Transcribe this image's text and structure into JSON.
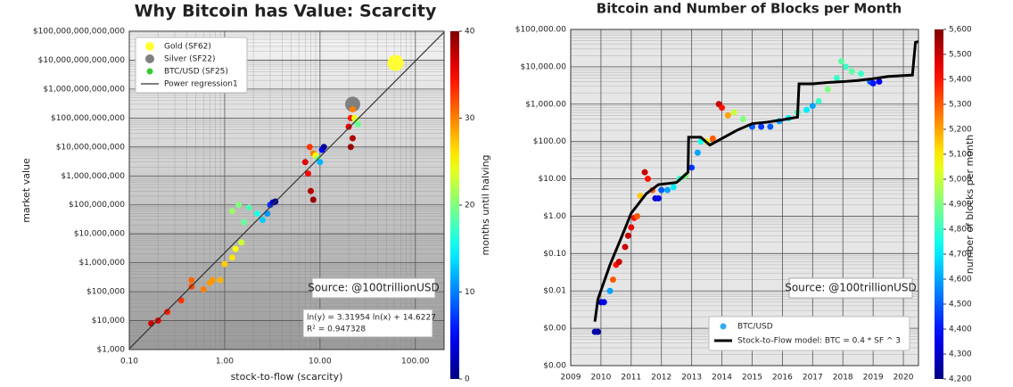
{
  "chart_data": [
    {
      "type": "scatter",
      "title": "Why Bitcoin has Value: Scarcity",
      "xlabel": "stock-to-flow (scarcity)",
      "ylabel": "market value",
      "colorbar_label": "months until halving",
      "xscale": "log",
      "yscale": "log",
      "colormap": "jet",
      "grid": true,
      "legend": "upper left",
      "xlim": [
        0.1,
        200
      ],
      "ylim": [
        1000,
        100000000000000
      ],
      "xticks": [
        {
          "value": 0.1,
          "label": "0.10"
        },
        {
          "value": 1,
          "label": "1.00"
        },
        {
          "value": 10,
          "label": "10.00"
        },
        {
          "value": 100,
          "label": "100.00"
        }
      ],
      "yticks": [
        {
          "value": 1000,
          "label": "$1,000"
        },
        {
          "value": 10000,
          "label": "$10,000"
        },
        {
          "value": 100000,
          "label": "$100,000"
        },
        {
          "value": 1000000,
          "label": "$1,000,000"
        },
        {
          "value": 10000000,
          "label": "$10,000,000"
        },
        {
          "value": 100000000,
          "label": "$100,000,000"
        },
        {
          "value": 1000000000,
          "label": "$1,000,000,000"
        },
        {
          "value": 10000000000,
          "label": "$10,000,000,000"
        },
        {
          "value": 100000000000,
          "label": "$100,000,000,000"
        },
        {
          "value": 1000000000000,
          "label": "$1,000,000,000,000"
        },
        {
          "value": 10000000000000,
          "label": "$10,000,000,000,000"
        },
        {
          "value": 100000000000000,
          "label": "$100,000,000,000,000"
        }
      ],
      "clim": [
        0,
        40
      ],
      "cticks": [
        0,
        10,
        20,
        30,
        40
      ],
      "annotations": [
        "Source: @100trillionUSD",
        "ln(y) = 3.31954 ln(x) + 14.6227",
        "R² = 0.947328"
      ],
      "series": [
        {
          "name": "Gold (SF62)",
          "kind": "scatter",
          "color": "#ffff33",
          "x": [
            62
          ],
          "y": [
            8000000000000
          ]
        },
        {
          "name": "Silver (SF22)",
          "kind": "scatter",
          "color": "#808080",
          "x": [
            22
          ],
          "y": [
            300000000000
          ]
        },
        {
          "name": "BTC/USD (SF25)",
          "kind": "scatter",
          "color": "#33cc33",
          "x": [
            0.17,
            0.2,
            0.25,
            0.35,
            0.45,
            0.45,
            0.6,
            0.7,
            0.75,
            0.9,
            1.0,
            1.2,
            1.3,
            1.5,
            1.2,
            1.4,
            1.6,
            1.8,
            2.2,
            2.5,
            2.8,
            3.0,
            3.2,
            3.4,
            7,
            7.5,
            8,
            8.5,
            7.8,
            8.5,
            9,
            9.5,
            10,
            10.5,
            11,
            21,
            22,
            20,
            21,
            22,
            23,
            24,
            25
          ],
          "y": [
            8000,
            10000,
            20000,
            50000,
            150000,
            250000,
            120000,
            200000,
            250000,
            250000,
            900000,
            1500000,
            3000000,
            5000000,
            60000000,
            100000000,
            25000000,
            80000000,
            50000000,
            30000000,
            50000000,
            100000000,
            120000000,
            130000000,
            3000000000,
            1200000000,
            300000000,
            150000000,
            10000000000,
            6000000000,
            5000000000,
            4000000000,
            3000000000,
            8000000000,
            10000000000,
            10000000000,
            20000000000,
            50000000000,
            100000000000,
            200000000000,
            100000000000,
            80000000000,
            60000000000
          ],
          "color_values": [
            37,
            36,
            34,
            33,
            32,
            31,
            30,
            29,
            29,
            28,
            27,
            26,
            25,
            23,
            21,
            20,
            19,
            18,
            16,
            13,
            11,
            7,
            3,
            1,
            36,
            35,
            38,
            39,
            33,
            30,
            25,
            20,
            12,
            5,
            1,
            39,
            38,
            36,
            34,
            30,
            25,
            22,
            19
          ]
        },
        {
          "name": "Power regression1",
          "kind": "line",
          "color": "#333333",
          "x": [
            0.1,
            200
          ],
          "y": [
            1071,
            93000000000000
          ]
        }
      ]
    },
    {
      "type": "scatter",
      "title": "Bitcoin and Number of Blocks per Month",
      "colorbar_label": "number of blocks per month",
      "xscale": "linear",
      "yscale": "log",
      "colormap": "jet",
      "grid": true,
      "legend": "lower right",
      "xlim": [
        2009,
        2020.5
      ],
      "ylim": [
        0.0001,
        100000
      ],
      "xticks": [
        2009,
        2010,
        2011,
        2012,
        2013,
        2014,
        2015,
        2016,
        2017,
        2018,
        2019,
        2020
      ],
      "yticks": [
        {
          "value": 0.0001,
          "label": "$0.00"
        },
        {
          "value": 0.001,
          "label": "$0.00"
        },
        {
          "value": 0.01,
          "label": "$0.01"
        },
        {
          "value": 0.1,
          "label": "$0.10"
        },
        {
          "value": 1,
          "label": "$1.00"
        },
        {
          "value": 10,
          "label": "$10.00"
        },
        {
          "value": 100,
          "label": "$100.00"
        },
        {
          "value": 1000,
          "label": "$1,000.00"
        },
        {
          "value": 10000,
          "label": "$10,000.00"
        },
        {
          "value": 100000,
          "label": "$100,000.00"
        }
      ],
      "clim": [
        4200,
        5600
      ],
      "cticks": [
        {
          "value": 4200,
          "label": "4,200"
        },
        {
          "value": 4300,
          "label": "4,300"
        },
        {
          "value": 4400,
          "label": "4,400"
        },
        {
          "value": 4500,
          "label": "4,500"
        },
        {
          "value": 4600,
          "label": "4,600"
        },
        {
          "value": 4700,
          "label": "4,700"
        },
        {
          "value": 4800,
          "label": "4,800"
        },
        {
          "value": 4900,
          "label": "4,900"
        },
        {
          "value": 5000,
          "label": "5,000"
        },
        {
          "value": 5100,
          "label": "5,100"
        },
        {
          "value": 5200,
          "label": "5,200"
        },
        {
          "value": 5300,
          "label": "5,300"
        },
        {
          "value": 5400,
          "label": "5,400"
        },
        {
          "value": 5500,
          "label": "5,500"
        },
        {
          "value": 5600,
          "label": "5,600"
        }
      ],
      "annotations": [
        "Source: @100trillionUSD"
      ],
      "series": [
        {
          "name": "BTC/USD",
          "kind": "scatter",
          "color": "#33aaee",
          "x": [
            2009.8,
            2009.9,
            2010.0,
            2010.1,
            2010.3,
            2010.4,
            2010.5,
            2010.6,
            2010.8,
            2010.9,
            2011.0,
            2011.1,
            2011.2,
            2011.3,
            2011.45,
            2011.55,
            2011.7,
            2011.8,
            2011.9,
            2012.0,
            2012.2,
            2012.4,
            2012.6,
            2012.8,
            2013.0,
            2013.2,
            2013.3,
            2013.5,
            2013.7,
            2013.9,
            2014.0,
            2014.2,
            2014.4,
            2014.7,
            2015.0,
            2015.3,
            2015.6,
            2015.9,
            2016.2,
            2016.5,
            2016.8,
            2017.0,
            2017.2,
            2017.5,
            2017.8,
            2017.95,
            2018.1,
            2018.3,
            2018.6,
            2018.9,
            2019.0,
            2019.2
          ],
          "y": [
            0.0008,
            0.0008,
            0.005,
            0.005,
            0.01,
            0.02,
            0.05,
            0.06,
            0.15,
            0.3,
            0.5,
            0.9,
            1.0,
            3.5,
            15,
            10,
            5,
            3,
            3,
            5,
            5,
            6,
            10,
            12,
            20,
            50,
            100,
            100,
            120,
            1000,
            800,
            500,
            600,
            400,
            250,
            250,
            250,
            350,
            420,
            600,
            700,
            900,
            1200,
            2500,
            5000,
            14000,
            10000,
            7500,
            6500,
            4000,
            3600,
            4000
          ],
          "color_values": [
            4250,
            4250,
            4300,
            4350,
            4600,
            5300,
            5400,
            5500,
            5500,
            5500,
            5450,
            5400,
            5300,
            5150,
            5500,
            5400,
            5300,
            4300,
            4350,
            4500,
            4600,
            4700,
            4800,
            4900,
            4450,
            4600,
            4750,
            5100,
            5300,
            5500,
            5400,
            5200,
            5000,
            4900,
            4500,
            4450,
            4500,
            4600,
            4700,
            4800,
            4700,
            4600,
            4800,
            4900,
            4800,
            4850,
            4800,
            4850,
            4800,
            4500,
            4400,
            4350
          ]
        },
        {
          "name": "Stock-to-Flow model: BTC = 0.4 * SF ^ 3",
          "kind": "line",
          "color": "#000000",
          "x": [
            2009.8,
            2009.9,
            2010.3,
            2010.7,
            2011.0,
            2011.5,
            2011.9,
            2012.5,
            2012.88,
            2012.9,
            2013.3,
            2013.6,
            2014.0,
            2014.5,
            2015.0,
            2015.5,
            2016.0,
            2016.5,
            2016.55,
            2017.0,
            2017.5,
            2018.0,
            2018.5,
            2019.0,
            2019.5,
            2020.3,
            2020.4,
            2020.6
          ],
          "y": [
            0.0015,
            0.006,
            0.05,
            0.3,
            1.2,
            4,
            7,
            8,
            15,
            130,
            130,
            80,
            120,
            200,
            300,
            330,
            380,
            450,
            3500,
            3500,
            3800,
            4000,
            4300,
            4800,
            5500,
            6000,
            45000,
            50000
          ]
        }
      ]
    }
  ]
}
